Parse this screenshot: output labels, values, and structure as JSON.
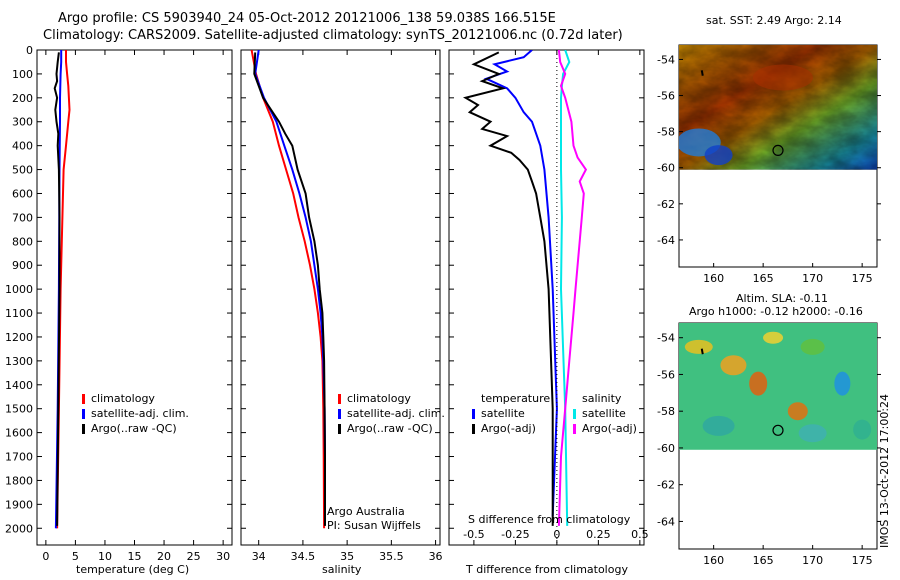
{
  "header": {
    "line1": "Argo profile: CS 5903940_24 05-Oct-2012 20121006_138 59.038S 166.515E",
    "line2": "Climatology: CARS2009. Satellite-adjusted climatology: synTS_20121006.nc (0.72d later)"
  },
  "colors": {
    "climatology": "#ff0000",
    "satellite": "#0000ff",
    "argo": "#000000",
    "sat_s_diff": "#00e8e8",
    "argo_s_diff": "#ff00ff"
  },
  "legend": {
    "climatology": "climatology",
    "satellite_adj": "satellite-adj. clim.",
    "argo": "Argo(..raw -QC)",
    "temperature": "temperature",
    "salinity": "salinity",
    "satellite": "satellite",
    "argo_adj": "Argo(-adj)"
  },
  "credits": {
    "org": "Argo Australia",
    "pi": "PI: Susan Wijffels",
    "stamp": "IMOS 13-Oct-2012 17:00:24"
  },
  "maps": {
    "top_title": "sat. SST: 2.49 Argo: 2.14",
    "bottom_title_1": "Altim. SLA: -0.11",
    "bottom_title_2": "Argo h1000: -0.12 h2000: -0.16"
  },
  "chart_data": [
    {
      "type": "line",
      "name": "temperature",
      "xlabel": "temperature (deg C)",
      "xlim": [
        -1.5,
        31.5
      ],
      "xticks": [
        0,
        5,
        10,
        15,
        20,
        25,
        30
      ],
      "ylim": [
        0,
        2070
      ],
      "yticks": [
        0,
        100,
        200,
        300,
        400,
        500,
        600,
        700,
        800,
        900,
        1000,
        1100,
        1200,
        1300,
        1400,
        1500,
        1600,
        1700,
        1800,
        1900,
        2000
      ],
      "series": [
        {
          "name": "climatology",
          "depth": [
            0,
            50,
            100,
            150,
            200,
            250,
            300,
            400,
            500,
            700,
            1000,
            1500,
            2000
          ],
          "values": [
            3.4,
            3.4,
            3.6,
            3.8,
            3.9,
            4.0,
            3.8,
            3.4,
            3.0,
            2.8,
            2.5,
            2.2,
            1.9
          ]
        },
        {
          "name": "satellite-adj. clim.",
          "depth": [
            0,
            50,
            100,
            200,
            300,
            500,
            1000,
            1500,
            2000
          ],
          "values": [
            2.6,
            2.6,
            2.5,
            2.4,
            2.4,
            2.3,
            2.2,
            2.0,
            1.7
          ]
        },
        {
          "name": "Argo(..raw -QC)",
          "depth": [
            10,
            50,
            100,
            130,
            160,
            200,
            250,
            300,
            350,
            400,
            500,
            700,
            1000,
            1500,
            1990
          ],
          "values": [
            2.2,
            2.0,
            1.8,
            1.9,
            1.5,
            1.9,
            1.6,
            1.8,
            2.1,
            2.0,
            2.2,
            2.3,
            2.3,
            2.1,
            1.9
          ]
        }
      ]
    },
    {
      "type": "line",
      "name": "salinity",
      "xlabel": "salinity",
      "xlim": [
        33.8,
        36.05
      ],
      "xticks": [
        34,
        34.5,
        35,
        35.5,
        36
      ],
      "ylim": [
        0,
        2070
      ],
      "series": [
        {
          "name": "climatology",
          "depth": [
            0,
            100,
            200,
            300,
            400,
            500,
            600,
            700,
            800,
            900,
            1000,
            1100,
            1200,
            1300,
            1500,
            1700,
            2000
          ],
          "values": [
            33.92,
            33.97,
            34.05,
            34.16,
            34.23,
            34.31,
            34.39,
            34.45,
            34.52,
            34.58,
            34.63,
            34.67,
            34.7,
            34.72,
            34.73,
            34.735,
            34.74
          ]
        },
        {
          "name": "satellite-adj. clim.",
          "depth": [
            0,
            100,
            200,
            300,
            400,
            500,
            600,
            700,
            800,
            900,
            1000,
            1100,
            1200,
            1300,
            1500,
            1700,
            1950
          ],
          "values": [
            34.0,
            33.96,
            34.06,
            34.2,
            34.29,
            34.38,
            34.46,
            34.53,
            34.59,
            34.63,
            34.67,
            34.7,
            34.72,
            34.73,
            34.745,
            34.75,
            34.75
          ]
        },
        {
          "name": "Argo(..raw -QC)",
          "depth": [
            10,
            100,
            200,
            300,
            350,
            400,
            500,
            600,
            700,
            800,
            900,
            1000,
            1100,
            1200,
            1300,
            1500,
            1700,
            1990
          ],
          "values": [
            33.96,
            33.95,
            34.05,
            34.23,
            34.3,
            34.38,
            34.44,
            34.53,
            34.57,
            34.63,
            34.67,
            34.69,
            34.72,
            34.73,
            34.74,
            34.745,
            34.75,
            34.75
          ]
        }
      ]
    },
    {
      "type": "line",
      "name": "difference",
      "xlabel_top": "S difference from climatology",
      "xlabel": "T difference from climatology",
      "xlim": [
        -2.6,
        2.1
      ],
      "xticks": [
        -2,
        -1,
        0,
        1,
        2
      ],
      "s_xticks": [
        "-0.5",
        "-0.25",
        "0",
        "0.25",
        "0.5"
      ],
      "ylim": [
        0,
        2070
      ],
      "series": [
        {
          "name": "temperature satellite",
          "depth": [
            0,
            30,
            60,
            90,
            120,
            160,
            200,
            260,
            300,
            400,
            500,
            700,
            1000,
            1500,
            1950
          ],
          "values": [
            -0.6,
            -0.8,
            -1.5,
            -1.2,
            -1.7,
            -1.2,
            -1.0,
            -0.8,
            -0.6,
            -0.4,
            -0.3,
            -0.2,
            -0.1,
            0.0,
            -0.1
          ]
        },
        {
          "name": "temperature Argo(-adj)",
          "depth": [
            10,
            60,
            100,
            130,
            160,
            200,
            230,
            260,
            300,
            330,
            360,
            400,
            430,
            460,
            500,
            550,
            600,
            700,
            800,
            1000,
            1500,
            1990
          ],
          "values": [
            -1.4,
            -2.0,
            -1.4,
            -1.8,
            -1.3,
            -2.2,
            -1.9,
            -2.1,
            -1.6,
            -1.8,
            -1.2,
            -1.6,
            -1.1,
            -0.9,
            -0.7,
            -0.6,
            -0.5,
            -0.4,
            -0.3,
            -0.2,
            -0.1,
            -0.1
          ]
        },
        {
          "name": "salinity satellite",
          "depth": [
            0,
            50,
            100,
            150,
            200,
            300,
            500,
            700,
            1000,
            1500,
            1990
          ],
          "values": [
            0.2,
            0.3,
            0.15,
            0.12,
            0.1,
            0.1,
            0.1,
            0.12,
            0.1,
            0.2,
            0.25
          ]
        },
        {
          "name": "salinity Argo(-adj)",
          "depth": [
            0,
            50,
            100,
            150,
            200,
            300,
            400,
            450,
            500,
            550,
            600,
            700,
            800,
            900,
            1000,
            1100,
            1300,
            1500,
            1700,
            1990
          ],
          "values": [
            0.05,
            0.08,
            0.2,
            0.1,
            0.2,
            0.35,
            0.4,
            0.5,
            0.7,
            0.55,
            0.65,
            0.6,
            0.55,
            0.5,
            0.45,
            0.4,
            0.3,
            0.2,
            0.1,
            0.05
          ]
        }
      ]
    },
    {
      "type": "heatmap",
      "name": "sat-sst-map",
      "title": "sat. SST: 2.49 Argo: 2.14",
      "xlim": [
        156.5,
        176.5
      ],
      "ylim": [
        -65.5,
        -53.2
      ],
      "xticks": [
        160,
        165,
        170,
        175
      ],
      "yticks": [
        -54,
        -56,
        -58,
        -60,
        -62,
        -64
      ],
      "data_lat_min": -60.1,
      "float_position": [
        166.5,
        -59.04
      ]
    },
    {
      "type": "heatmap",
      "name": "altim-sla-map",
      "title": "Altim. SLA: -0.11",
      "subtitle": "Argo h1000: -0.12 h2000: -0.16",
      "xlim": [
        156.5,
        176.5
      ],
      "ylim": [
        -65.5,
        -53.2
      ],
      "xticks": [
        160,
        165,
        170,
        175
      ],
      "yticks": [
        -54,
        -56,
        -58,
        -60,
        -62,
        -64
      ],
      "data_lat_min": -60.1,
      "float_position": [
        166.5,
        -59.04
      ]
    }
  ]
}
